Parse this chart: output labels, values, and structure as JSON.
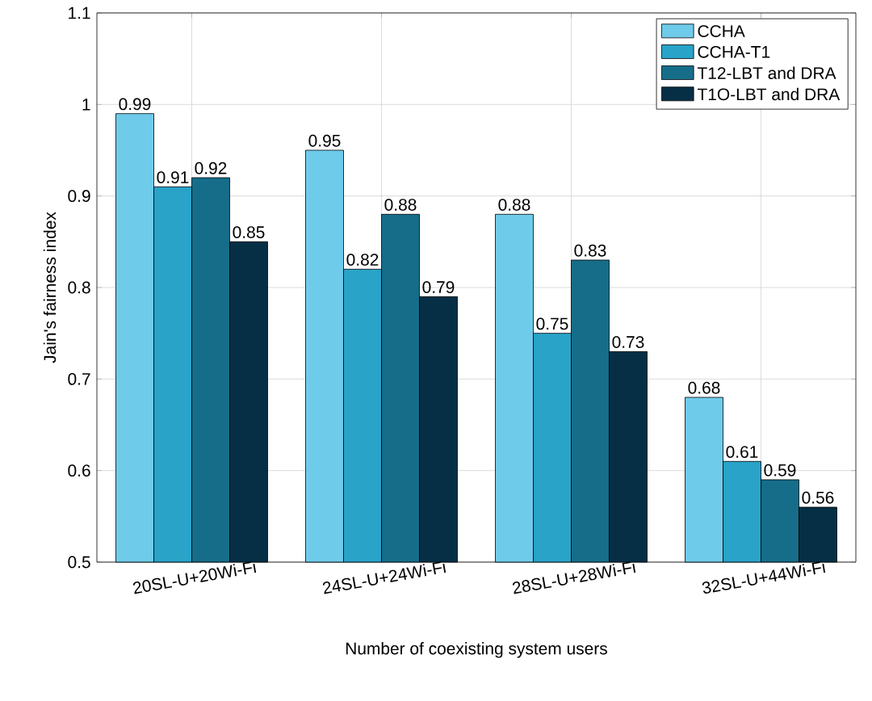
{
  "chart_data": {
    "type": "bar",
    "xlabel": "Number of coexisting system users",
    "ylabel": "Jain's fairness index",
    "categories": [
      "20SL-U+20Wi-Fi",
      "24SL-U+24Wi-Fi",
      "28SL-U+28Wi-Fi",
      "32SL-U+44Wi-Fi"
    ],
    "series": [
      {
        "name": "CCHA",
        "color": "#6fcbea",
        "values": [
          0.99,
          0.95,
          0.88,
          0.68
        ]
      },
      {
        "name": "CCHA-T1",
        "color": "#29a3c8",
        "values": [
          0.91,
          0.82,
          0.75,
          0.61
        ]
      },
      {
        "name": "T12-LBT and DRA",
        "color": "#166d8a",
        "values": [
          0.92,
          0.88,
          0.83,
          0.59
        ]
      },
      {
        "name": "T1O-LBT and DRA",
        "color": "#062f45",
        "values": [
          0.85,
          0.79,
          0.73,
          0.56
        ]
      }
    ],
    "ylim": [
      0.5,
      1.1
    ],
    "yticks": [
      0.5,
      0.6,
      0.7,
      0.8,
      0.9,
      1,
      1.1
    ],
    "grid": true,
    "legend": "top right",
    "data_labels": true
  }
}
